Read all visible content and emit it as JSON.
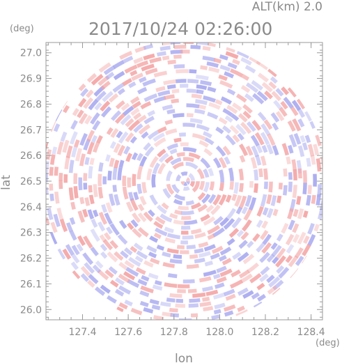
{
  "header": {
    "altitude_label": "ALT(km) 2.0",
    "timestamp": "2017/10/24 02:26:00"
  },
  "chart_data": {
    "type": "heatmap",
    "xlabel": "lon",
    "ylabel": "lat",
    "x_unit": "(deg)",
    "y_unit": "(deg)",
    "xlim": [
      127.24,
      128.45
    ],
    "ylim": [
      25.96,
      27.04
    ],
    "x_ticks": [
      "127.4",
      "127.6",
      "127.8",
      "128.0",
      "128.2",
      "128.4"
    ],
    "y_ticks": [
      "26.0",
      "26.1",
      "26.2",
      "26.3",
      "26.4",
      "26.5",
      "26.6",
      "26.7",
      "26.8",
      "26.9",
      "27.0"
    ],
    "center": {
      "lon": 127.85,
      "lat": 26.5
    },
    "radius_lat_deg": 0.555,
    "color_positive": "#f4a6a6",
    "color_negative": "#a9aaf0",
    "grid": false,
    "legend": "none"
  }
}
